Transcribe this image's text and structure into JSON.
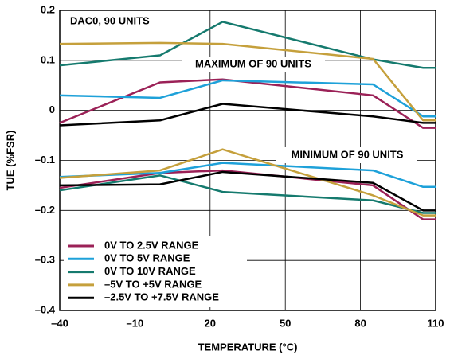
{
  "chart_data": {
    "type": "line",
    "annotations": [
      "DAC0, 90 UNITS",
      "MAXIMUM OF 90 UNITS",
      "MINIMUM OF 90 UNITS"
    ],
    "x_label": "TEMPERATURE (°C)",
    "y_label": "TUE (%FSR)",
    "x": [
      -40,
      0,
      25,
      85,
      105,
      110
    ],
    "xlim": [
      -40,
      110
    ],
    "xticks": [
      {
        "value": -40,
        "label": "–40"
      },
      {
        "value": -10,
        "label": "–10"
      },
      20,
      50,
      80,
      110
    ],
    "ylim": [
      -0.4,
      0.2
    ],
    "yticks": [
      {
        "value": -0.4,
        "label": "–0.4"
      },
      {
        "value": -0.3,
        "label": "–0.3"
      },
      {
        "value": -0.2,
        "label": "–0.2"
      },
      {
        "value": -0.1,
        "label": "–0.1"
      },
      0,
      0.1,
      0.2
    ],
    "grid": true,
    "legend": "lower left",
    "series": [
      {
        "name": "0V TO 2.5V RANGE",
        "color": "#9b2157",
        "values": [
          -0.025,
          0.056,
          0.062,
          0.03,
          -0.035,
          -0.035
        ],
        "min_values": [
          -0.155,
          -0.125,
          -0.12,
          -0.15,
          -0.218,
          -0.218
        ]
      },
      {
        "name": "0V TO 5V RANGE",
        "color": "#1ea1d9",
        "values": [
          0.03,
          0.025,
          0.06,
          0.052,
          -0.012,
          -0.012
        ],
        "min_values": [
          -0.133,
          -0.125,
          -0.105,
          -0.12,
          -0.153,
          -0.153
        ]
      },
      {
        "name": "0V TO 10V RANGE",
        "color": "#157a6e",
        "values": [
          0.09,
          0.11,
          0.177,
          0.102,
          0.085,
          0.085
        ],
        "min_values": [
          -0.16,
          -0.13,
          -0.163,
          -0.18,
          -0.205,
          -0.205
        ]
      },
      {
        "name": "–5V TO +5V RANGE",
        "color": "#c5a03c",
        "values": [
          0.133,
          0.135,
          0.133,
          0.103,
          -0.02,
          -0.02
        ],
        "min_values": [
          -0.135,
          -0.12,
          -0.078,
          -0.17,
          -0.21,
          -0.21
        ]
      },
      {
        "name": "–2.5V TO +7.5V RANGE",
        "color": "#000000",
        "values": [
          -0.03,
          -0.02,
          0.013,
          -0.012,
          -0.025,
          -0.025
        ],
        "min_values": [
          -0.15,
          -0.148,
          -0.123,
          -0.145,
          -0.2,
          -0.2
        ]
      }
    ]
  }
}
